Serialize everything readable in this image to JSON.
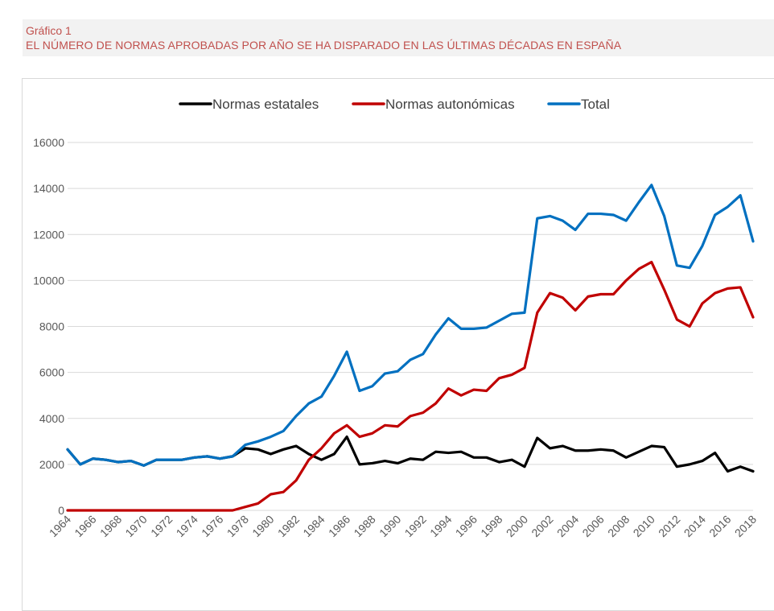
{
  "caption": {
    "number": "Gráfico 1",
    "title": "EL NÚMERO DE NORMAS APROBADAS POR AÑO SE HA DISPARADO EN LAS ÚLTIMAS DÉCADAS EN ESPAÑA"
  },
  "colors": {
    "estatales": "#000000",
    "autonomicas": "#c00000",
    "total": "#0070c0",
    "grid": "#d9d9d9"
  },
  "chart_data": {
    "type": "line",
    "title": "",
    "xlabel": "",
    "ylabel": "",
    "ylim": [
      0,
      16000
    ],
    "yticks": [
      "0",
      "2000",
      "4000",
      "6000",
      "8000",
      "10000",
      "12000",
      "14000",
      "16000"
    ],
    "x": [
      1964,
      1965,
      1966,
      1967,
      1968,
      1969,
      1970,
      1971,
      1972,
      1973,
      1974,
      1975,
      1976,
      1977,
      1978,
      1979,
      1980,
      1981,
      1982,
      1983,
      1984,
      1985,
      1986,
      1987,
      1988,
      1989,
      1990,
      1991,
      1992,
      1993,
      1994,
      1995,
      1996,
      1997,
      1998,
      1999,
      2000,
      2001,
      2002,
      2003,
      2004,
      2005,
      2006,
      2007,
      2008,
      2009,
      2010,
      2011,
      2012,
      2013,
      2014,
      2015,
      2016,
      2017,
      2018
    ],
    "xticks": [
      "1964",
      "1966",
      "1968",
      "1970",
      "1972",
      "1974",
      "1976",
      "1978",
      "1980",
      "1982",
      "1984",
      "1986",
      "1988",
      "1990",
      "1992",
      "1994",
      "1996",
      "1998",
      "2000",
      "2002",
      "2004",
      "2006",
      "2008",
      "2010",
      "2012",
      "2014",
      "2016",
      "2018"
    ],
    "legend_position": "top",
    "series": [
      {
        "name": "Normas estatales",
        "key": "estatales",
        "values": [
          2650,
          2000,
          2250,
          2200,
          2100,
          2150,
          1950,
          2200,
          2200,
          2200,
          2300,
          2350,
          2250,
          2350,
          2700,
          2650,
          2450,
          2650,
          2800,
          2450,
          2200,
          2450,
          3200,
          2000,
          2050,
          2150,
          2050,
          2250,
          2200,
          2550,
          2500,
          2550,
          2300,
          2300,
          2100,
          2200,
          1900,
          3150,
          2700,
          2800,
          2600,
          2600,
          2650,
          2600,
          2300,
          2550,
          2800,
          2750,
          1900,
          2000,
          2150,
          2500,
          1700,
          1900,
          1700
        ]
      },
      {
        "name": "Normas autonómicas",
        "key": "autonomicas",
        "values": [
          0,
          0,
          0,
          0,
          0,
          0,
          0,
          0,
          0,
          0,
          0,
          0,
          0,
          0,
          150,
          300,
          700,
          800,
          1300,
          2200,
          2700,
          3350,
          3700,
          3200,
          3350,
          3700,
          3650,
          4100,
          4250,
          4650,
          5300,
          5000,
          5250,
          5200,
          5750,
          5900,
          6200,
          8600,
          9450,
          9250,
          8700,
          9300,
          9400,
          9400,
          10000,
          10500,
          10800,
          9600,
          8300,
          8000,
          9000,
          9450,
          9650,
          9700,
          8400
        ]
      },
      {
        "name": "Total",
        "key": "total",
        "values": [
          2650,
          2000,
          2250,
          2200,
          2100,
          2150,
          1950,
          2200,
          2200,
          2200,
          2300,
          2350,
          2250,
          2350,
          2850,
          3000,
          3200,
          3450,
          4100,
          4650,
          4950,
          5850,
          6900,
          5200,
          5400,
          5950,
          6050,
          6550,
          6800,
          7650,
          8350,
          7900,
          7900,
          7950,
          8250,
          8550,
          8600,
          12700,
          12800,
          12600,
          12200,
          12900,
          12900,
          12850,
          12600,
          13400,
          14150,
          12800,
          10650,
          10550,
          11500,
          12850,
          13200,
          13700,
          11700
        ]
      }
    ]
  }
}
